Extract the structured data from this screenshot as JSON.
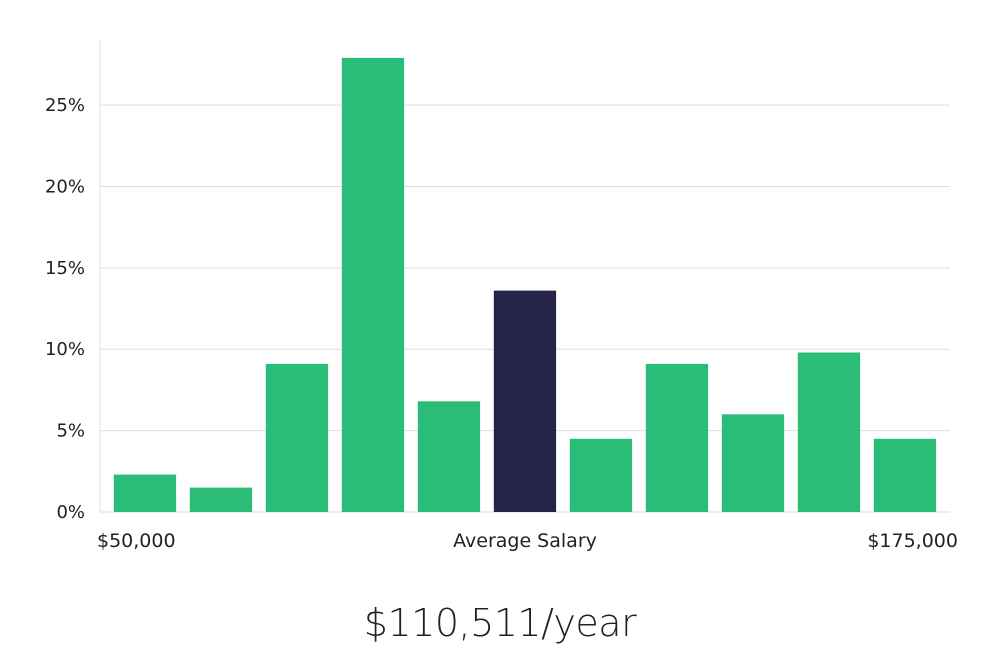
{
  "chart_data": {
    "type": "bar",
    "categories": [
      "$50,000",
      "",
      "",
      "",
      "",
      "Average Salary",
      "",
      "",
      "",
      "",
      "$175,000"
    ],
    "values": [
      2.3,
      1.5,
      9.1,
      27.9,
      6.8,
      13.6,
      4.5,
      9.1,
      6.0,
      9.8,
      4.5
    ],
    "highlight_index": 5,
    "ylim": [
      0,
      29
    ],
    "y_ticks": [
      0,
      5,
      10,
      15,
      20,
      25
    ],
    "y_tick_labels": [
      "0%",
      "5%",
      "10%",
      "15%",
      "20%",
      "25%"
    ],
    "x_labels": {
      "left": "$50,000",
      "center": "Average Salary",
      "right": "$175,000"
    },
    "colors": {
      "bar": "#2bbd77",
      "highlight": "#27244a",
      "grid": "#dddddd",
      "text": "#222222"
    },
    "grid": true
  },
  "summary": {
    "salary": "$110,511/year"
  }
}
